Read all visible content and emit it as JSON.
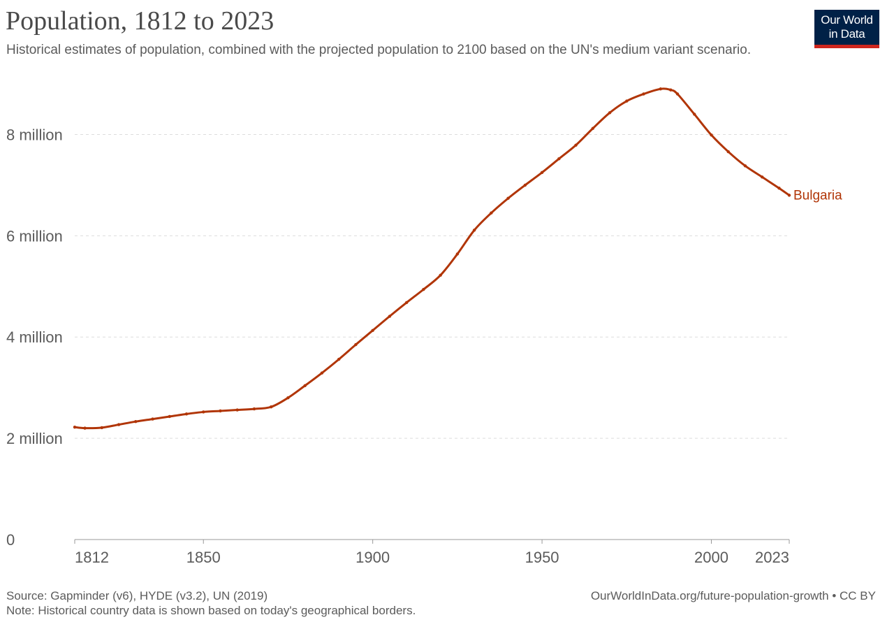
{
  "header": {
    "title": "Population, 1812 to 2023",
    "subtitle": "Historical estimates of population, combined with the projected population to 2100 based on the UN's medium variant scenario."
  },
  "logo": {
    "line1": "Our World",
    "line2": "in Data",
    "bg_color": "#002147",
    "bar_color": "#ce261e"
  },
  "footer": {
    "source": "Source: Gapminder (v6), HYDE (v3.2), UN (2019)",
    "note": "Note: Historical country data is shown based on today's geographical borders.",
    "link": "OurWorldInData.org/future-population-growth • CC BY"
  },
  "chart_data": {
    "type": "line",
    "title": "Population, 1812 to 2023",
    "xlabel": "",
    "ylabel": "",
    "xlim": [
      1812,
      2023
    ],
    "ylim": [
      0,
      9000000
    ],
    "x_ticks": [
      1812,
      1850,
      1900,
      1950,
      2000,
      2023
    ],
    "x_tick_labels": [
      "1812",
      "1850",
      "1900",
      "1950",
      "2000",
      "2023"
    ],
    "y_ticks": [
      0,
      2000000,
      4000000,
      6000000,
      8000000
    ],
    "y_tick_labels": [
      "0",
      "2 million",
      "4 million",
      "6 million",
      "8 million"
    ],
    "grid": "horizontal dashed",
    "legend": "end-of-line label",
    "series": [
      {
        "name": "Bulgaria",
        "color": "#b13507",
        "x": [
          1812,
          1815,
          1820,
          1825,
          1830,
          1835,
          1840,
          1845,
          1850,
          1855,
          1860,
          1865,
          1870,
          1875,
          1880,
          1885,
          1890,
          1895,
          1900,
          1905,
          1910,
          1915,
          1920,
          1925,
          1930,
          1935,
          1940,
          1945,
          1950,
          1955,
          1960,
          1965,
          1970,
          1975,
          1980,
          1985,
          1988,
          1990,
          1995,
          2000,
          2005,
          2010,
          2015,
          2020,
          2023
        ],
        "y": [
          2220000,
          2200000,
          2210000,
          2270000,
          2330000,
          2380000,
          2430000,
          2480000,
          2520000,
          2540000,
          2560000,
          2580000,
          2620000,
          2800000,
          3040000,
          3290000,
          3560000,
          3850000,
          4130000,
          4410000,
          4680000,
          4940000,
          5220000,
          5640000,
          6110000,
          6450000,
          6740000,
          7000000,
          7250000,
          7520000,
          7790000,
          8120000,
          8430000,
          8660000,
          8800000,
          8900000,
          8880000,
          8800000,
          8400000,
          7990000,
          7660000,
          7380000,
          7160000,
          6940000,
          6800000
        ]
      }
    ]
  }
}
